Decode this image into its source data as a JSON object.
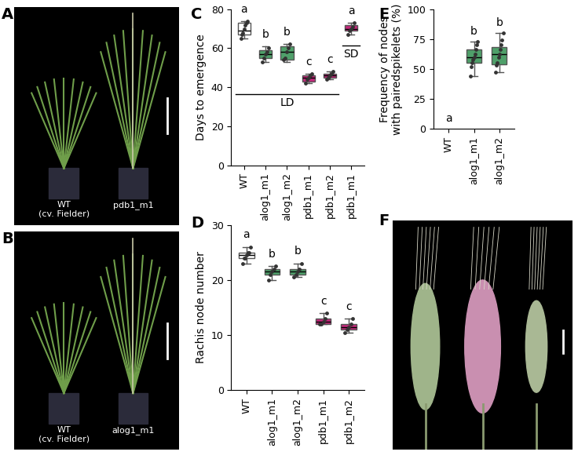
{
  "chart_data": [
    {
      "type": "box",
      "label": "C",
      "ylabel": "Days to emergence",
      "categories": [
        "WT",
        "alog1_m1",
        "alog1_m2",
        "pdb1_m1",
        "pdb1_m2",
        "pdb1_m1"
      ],
      "colors": [
        "#ffffff",
        "#4fa06a",
        "#4fa06a",
        "#c2287a",
        "#c2287a",
        "#c2287a"
      ],
      "boxes": [
        {
          "min": 65,
          "q1": 67,
          "median": 69,
          "q3": 73,
          "max": 74
        },
        {
          "min": 53,
          "q1": 55,
          "median": 57,
          "q3": 59,
          "max": 61
        },
        {
          "min": 53,
          "q1": 54,
          "median": 58,
          "q3": 61,
          "max": 62
        },
        {
          "min": 42,
          "q1": 43,
          "median": 45,
          "q3": 46,
          "max": 47
        },
        {
          "min": 44,
          "q1": 45,
          "median": 46,
          "q3": 47,
          "max": 48
        },
        {
          "min": 67,
          "q1": 69,
          "median": 70,
          "q3": 72,
          "max": 73
        }
      ],
      "points": [
        [
          65,
          67,
          68,
          70,
          72,
          73,
          74
        ],
        [
          53,
          55,
          57,
          58,
          60
        ],
        [
          54,
          55,
          58,
          60,
          62
        ],
        [
          42,
          44,
          45,
          46,
          47
        ],
        [
          44,
          45,
          46,
          47,
          48
        ],
        [
          67,
          69,
          70,
          71,
          73
        ]
      ],
      "letters": [
        "a",
        "b",
        "b",
        "c",
        "c",
        "a"
      ],
      "ylim": [
        0,
        80
      ],
      "yticks": [
        0,
        20,
        40,
        60,
        80
      ],
      "annotations": [
        {
          "text": "LD",
          "from": 0,
          "to": 4
        },
        {
          "text": "SD",
          "from": 5,
          "to": 5
        }
      ]
    },
    {
      "type": "box",
      "label": "D",
      "ylabel": "Rachis node number",
      "categories": [
        "WT",
        "alog1_m1",
        "alog1_m2",
        "pdb1_m1",
        "pdb1_m2"
      ],
      "colors": [
        "#ffffff",
        "#4fa06a",
        "#4fa06a",
        "#c2287a",
        "#c2287a"
      ],
      "boxes": [
        {
          "min": 23,
          "q1": 24,
          "median": 24.5,
          "q3": 25,
          "max": 26
        },
        {
          "min": 20,
          "q1": 21,
          "median": 21.5,
          "q3": 22,
          "max": 22.5
        },
        {
          "min": 20.5,
          "q1": 21,
          "median": 21.5,
          "q3": 22,
          "max": 23
        },
        {
          "min": 12,
          "q1": 12,
          "median": 12.5,
          "q3": 13,
          "max": 14
        },
        {
          "min": 10.5,
          "q1": 11,
          "median": 11.5,
          "q3": 12,
          "max": 13
        }
      ],
      "points": [
        [
          23,
          24,
          24,
          24.5,
          25,
          25,
          26
        ],
        [
          20,
          21,
          21.5,
          22,
          22.5
        ],
        [
          20.5,
          21,
          21.5,
          22,
          23
        ],
        [
          12,
          12,
          12.5,
          13,
          14
        ],
        [
          10.5,
          11,
          11.5,
          12,
          13
        ]
      ],
      "letters": [
        "a",
        "b",
        "b",
        "c",
        "c"
      ],
      "ylim": [
        0,
        30
      ],
      "yticks": [
        0,
        10,
        20,
        30
      ]
    },
    {
      "type": "box",
      "label": "E",
      "ylabel": "Frequency of nodes\nwith pairedspikelets (%)",
      "categories": [
        "WT",
        "alog1_m1",
        "alog1_m2"
      ],
      "colors": [
        "#ffffff",
        "#4fa06a",
        "#4fa06a"
      ],
      "boxes": [
        null,
        {
          "min": 44,
          "q1": 55,
          "median": 60,
          "q3": 66,
          "max": 73
        },
        {
          "min": 47,
          "q1": 54,
          "median": 62,
          "q3": 68,
          "max": 80
        }
      ],
      "points": [
        [],
        [
          44,
          52,
          55,
          58,
          60,
          62,
          66,
          70,
          73
        ],
        [
          47,
          53,
          55,
          60,
          62,
          66,
          70,
          74,
          80
        ]
      ],
      "letters": [
        "a",
        "b",
        "b"
      ],
      "ylim": [
        0,
        100
      ],
      "yticks": [
        0,
        25,
        50,
        75,
        100
      ]
    }
  ],
  "photo_panels": [
    {
      "label": "A",
      "labels": [
        "WT\n(cv. Fielder)",
        "pdb1_m1"
      ]
    },
    {
      "label": "B",
      "labels": [
        "WT\n(cv. Fielder)",
        "alog1_m1"
      ]
    },
    {
      "label": "F",
      "labels": []
    }
  ]
}
